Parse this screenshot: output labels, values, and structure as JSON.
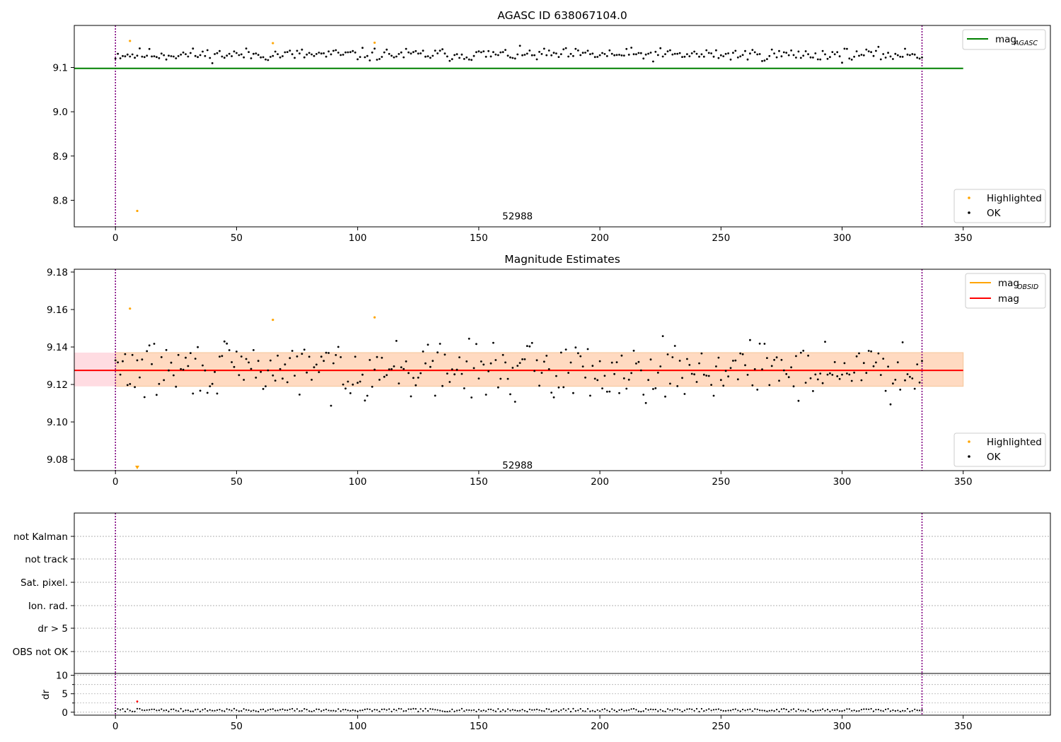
{
  "chart_data": [
    {
      "type": "scatter",
      "title": "AGASC ID 638067104.0",
      "xlim": [
        -17,
        386
      ],
      "ylim": [
        8.74,
        9.195
      ],
      "xticks": [
        0,
        50,
        100,
        150,
        200,
        250,
        300,
        350
      ],
      "yticks": [
        "8.8",
        "8.9",
        "9.0",
        "9.1"
      ],
      "vlines": [
        0,
        333
      ],
      "annotation": {
        "text": "52988",
        "x": 166,
        "y": 8.765
      },
      "mag_agasc": {
        "value": 9.098,
        "x_range": [
          -17,
          350
        ],
        "color": "#008000"
      },
      "ok_band": {
        "low": 9.108,
        "high": 9.15,
        "center": 9.128
      },
      "highlighted": [
        [
          6,
          9.16
        ],
        [
          9,
          8.776
        ],
        [
          65,
          9.155
        ],
        [
          107,
          9.156
        ]
      ],
      "colors": {
        "ok": "#000000",
        "highlighted": "#ffa500",
        "vline": "#800080"
      },
      "legend_upper": [
        {
          "label": "mag",
          "subscript": "AGASC",
          "color": "#008000"
        }
      ],
      "legend_lower": [
        {
          "label": "Highlighted",
          "color": "#ffa500"
        },
        {
          "label": "OK",
          "color": "#000000"
        }
      ]
    },
    {
      "type": "scatter",
      "title": "Magnitude Estimates",
      "xlim": [
        -17,
        386
      ],
      "ylim": [
        9.074,
        9.1815
      ],
      "xticks": [
        0,
        50,
        100,
        150,
        200,
        250,
        300,
        350
      ],
      "yticks": [
        "9.08",
        "9.10",
        "9.12",
        "9.14",
        "9.16",
        "9.18"
      ],
      "vlines": [
        0,
        333
      ],
      "annotation": {
        "text": "52988",
        "x": 166,
        "y": 9.077
      },
      "mag": {
        "value": 9.1275,
        "x_range": [
          -17,
          350
        ],
        "color": "#ff0000"
      },
      "mag_obsid": {
        "value": 9.1275,
        "color": "#ffa500"
      },
      "band_outer": {
        "low": 9.119,
        "high": 9.137,
        "x_range": [
          -17,
          350
        ],
        "color": "#ffc0cb"
      },
      "band_inner": {
        "low": 9.119,
        "high": 9.137,
        "x_range": [
          0,
          350
        ],
        "color": "#ffdab9"
      },
      "ok_band": {
        "low": 9.106,
        "high": 9.15,
        "center": 9.1275
      },
      "highlighted": [
        [
          6,
          9.1605
        ],
        [
          9,
          9.0755
        ],
        [
          65,
          9.1545
        ],
        [
          107,
          9.1558
        ]
      ],
      "colors": {
        "ok": "#000000",
        "highlighted": "#ffa500",
        "vline": "#800080"
      },
      "legend_upper": [
        {
          "label": "mag",
          "subscript": "OBSID",
          "color": "#ffa500"
        },
        {
          "label": "mag",
          "subscript": "",
          "color": "#ff0000"
        }
      ],
      "legend_lower": [
        {
          "label": "Highlighted",
          "color": "#ffa500"
        },
        {
          "label": "OK",
          "color": "#000000"
        }
      ]
    },
    {
      "type": "scatter",
      "title": "",
      "xlim": [
        -17,
        386
      ],
      "flag_labels": [
        "not Kalman",
        "not track",
        "Sat. pixel.",
        "Ion. rad.",
        "dr > 5",
        "OBS not OK"
      ],
      "vlines": [
        0,
        333
      ],
      "colors": {
        "vline": "#800080",
        "grid": "#b0b0b0"
      }
    },
    {
      "type": "scatter",
      "title": "",
      "ylabel": "dr",
      "xlim": [
        -17,
        386
      ],
      "ylim": [
        -0.8,
        10.5
      ],
      "xticks": [
        0,
        50,
        100,
        150,
        200,
        250,
        300,
        350
      ],
      "yticks": [
        "0",
        "5",
        "10"
      ],
      "vlines": [
        0,
        333
      ],
      "dr_ok_range": [
        0.15,
        0.95
      ],
      "highlighted": [
        [
          9,
          2.9
        ]
      ],
      "colors": {
        "ok": "#000000",
        "highlighted": "#ff0000",
        "vline": "#800080"
      }
    }
  ]
}
